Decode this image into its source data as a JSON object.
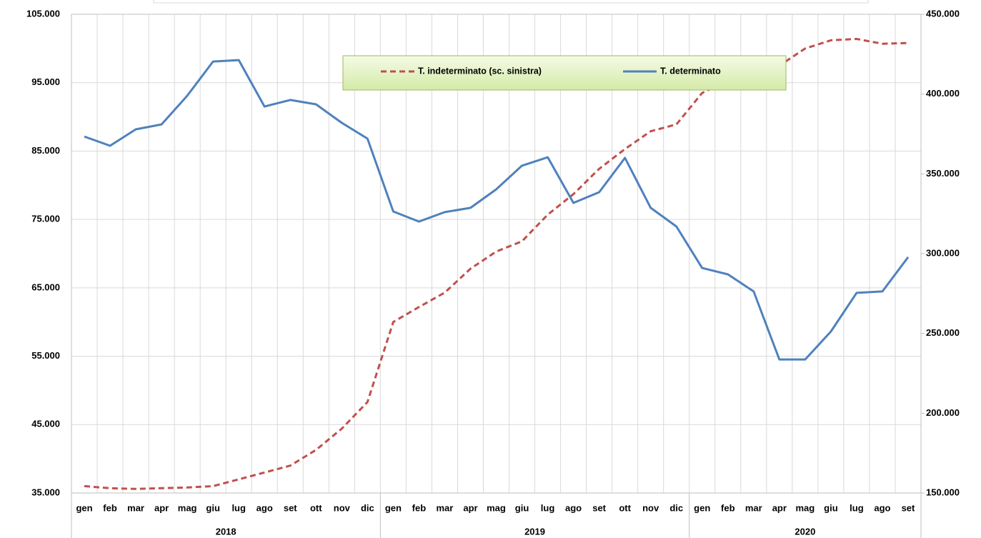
{
  "chart_data": {
    "type": "line",
    "groups": [
      {
        "label": "2018",
        "categories": [
          "gen",
          "feb",
          "mar",
          "apr",
          "mag",
          "giu",
          "lug",
          "ago",
          "set",
          "ott",
          "nov",
          "dic"
        ]
      },
      {
        "label": "2019",
        "categories": [
          "gen",
          "feb",
          "mar",
          "apr",
          "mag",
          "giu",
          "lug",
          "ago",
          "set",
          "ott",
          "nov",
          "dic"
        ]
      },
      {
        "label": "2020",
        "categories": [
          "gen",
          "feb",
          "mar",
          "apr",
          "mag",
          "giu",
          "lug",
          "ago",
          "set"
        ]
      }
    ],
    "series": [
      {
        "name": "T. indeterminato (sc. sinistra)",
        "color": "#c0504d",
        "dash": true,
        "values": [
          36000,
          35700,
          35600,
          35700,
          35800,
          36000,
          37000,
          38000,
          39000,
          41300,
          44400,
          48300,
          60000,
          62200,
          64300,
          67800,
          70300,
          71800,
          75700,
          78700,
          82400,
          85300,
          87900,
          88900,
          93500,
          95300,
          96500,
          97500,
          100000,
          101200,
          101400,
          100700,
          100800
        ]
      },
      {
        "name": "T. determinato",
        "color": "#4f81bd",
        "axis": "y2",
        "values": [
          373400,
          367600,
          377900,
          381000,
          399000,
          420400,
          421300,
          392200,
          396300,
          393600,
          382000,
          372100,
          326400,
          320100,
          326000,
          328700,
          340300,
          355100,
          360400,
          331800,
          338500,
          360000,
          328700,
          317000,
          291000,
          287000,
          276300,
          233700,
          233700,
          251200,
          275400,
          276300,
          297800
        ]
      }
    ],
    "ylim": [
      35000,
      105000
    ],
    "yticks": [
      {
        "value": 35000,
        "label": "35.000"
      },
      {
        "value": 45000,
        "label": "45.000"
      },
      {
        "value": 55000,
        "label": "55.000"
      },
      {
        "value": 65000,
        "label": "65.000"
      },
      {
        "value": 75000,
        "label": "75.000"
      },
      {
        "value": 85000,
        "label": "85.000"
      },
      {
        "value": 95000,
        "label": "95.000"
      },
      {
        "value": 105000,
        "label": "105.000"
      }
    ],
    "y2lim": [
      150000,
      450000
    ],
    "y2ticks": [
      {
        "value": 150000,
        "label": "150.000"
      },
      {
        "value": 200000,
        "label": "200.000"
      },
      {
        "value": 250000,
        "label": "250.000"
      },
      {
        "value": 300000,
        "label": "300.000"
      },
      {
        "value": 350000,
        "label": "350.000"
      },
      {
        "value": 400000,
        "label": "400.000"
      },
      {
        "value": 450000,
        "label": "450.000"
      }
    ],
    "grid": true
  }
}
